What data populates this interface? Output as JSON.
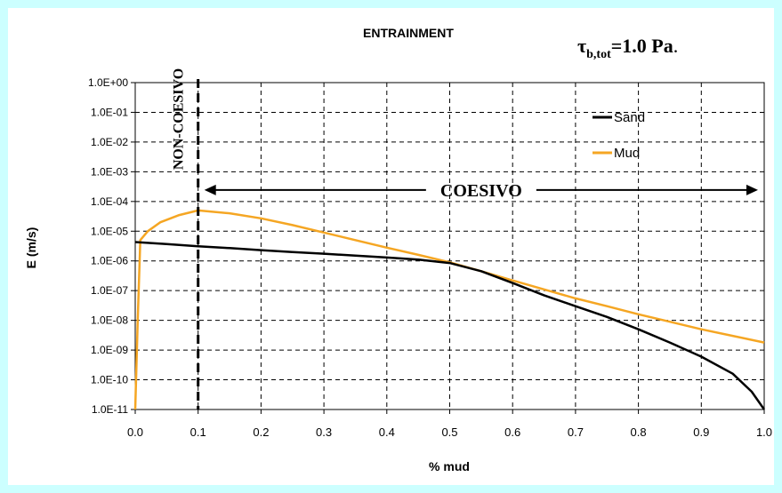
{
  "chart_data": {
    "type": "line",
    "title": "ENTRAINMENT",
    "annotation_tau": {
      "symbol": "τ",
      "subscript": "b,tot",
      "text": "=1.0 Pa"
    },
    "xlabel": "% mud",
    "ylabel": "E (m/s)",
    "xlim": [
      0,
      1
    ],
    "ylim_log10": [
      -11,
      0
    ],
    "log_y": true,
    "grid": true,
    "legend_position": "top-right",
    "x_ticks": [
      "0.0",
      "0.1",
      "0.2",
      "0.3",
      "0.4",
      "0.5",
      "0.6",
      "0.7",
      "0.8",
      "0.9",
      "1.0"
    ],
    "y_ticks": [
      "1.0E+00",
      "1.0E-01",
      "1.0E-02",
      "1.0E-03",
      "1.0E-04",
      "1.0E-05",
      "1.0E-06",
      "1.0E-07",
      "1.0E-08",
      "1.0E-09",
      "1.0E-10",
      "1.0E-11"
    ],
    "threshold": {
      "x": 0.1,
      "label": "NON-COESIVO"
    },
    "region_arrow": {
      "x_start": 0.1,
      "x_end": 1.0,
      "y": 0.0001,
      "label": "COESIVO"
    },
    "series": [
      {
        "name": "Sand",
        "color": "#000000",
        "x": [
          0.0,
          0.05,
          0.1,
          0.15,
          0.2,
          0.25,
          0.3,
          0.35,
          0.4,
          0.45,
          0.5,
          0.55,
          0.6,
          0.65,
          0.7,
          0.75,
          0.8,
          0.85,
          0.9,
          0.95,
          0.98,
          1.0
        ],
        "y": [
          4.3e-06,
          3.7e-06,
          3.1e-06,
          2.7e-06,
          2.3e-06,
          2e-06,
          1.75e-06,
          1.5e-06,
          1.3e-06,
          1.1e-06,
          8.5e-07,
          4.5e-07,
          1.8e-07,
          7e-08,
          3e-08,
          1.3e-08,
          5e-09,
          1.8e-09,
          6e-10,
          1.6e-10,
          4e-11,
          1e-11
        ]
      },
      {
        "name": "Mud",
        "color": "#f5a623",
        "x": [
          0.0,
          0.004,
          0.008,
          0.02,
          0.04,
          0.07,
          0.1,
          0.15,
          0.2,
          0.25,
          0.3,
          0.35,
          0.4,
          0.45,
          0.5,
          0.55,
          0.6,
          0.65,
          0.7,
          0.75,
          0.8,
          0.85,
          0.9,
          0.95,
          1.0
        ],
        "y": [
          1e-11,
          1e-08,
          5e-06,
          1e-05,
          2e-05,
          3.5e-05,
          5e-05,
          4e-05,
          2.7e-05,
          1.6e-05,
          9e-06,
          5e-06,
          2.8e-06,
          1.6e-06,
          9e-07,
          4.5e-07,
          2.2e-07,
          1.1e-07,
          5.5e-08,
          3e-08,
          1.6e-08,
          9e-09,
          5e-09,
          3e-09,
          1.8e-09
        ]
      }
    ]
  }
}
